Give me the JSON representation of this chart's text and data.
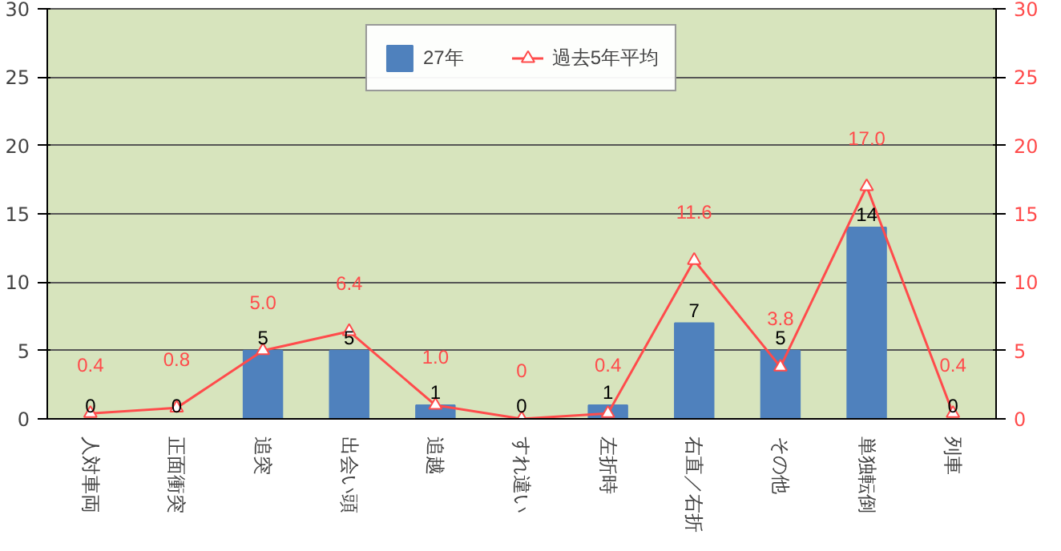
{
  "chart_data": {
    "type": "bar",
    "categories": [
      "人対車両",
      "正面衝突",
      "追突",
      "出会い頭",
      "追越",
      "すれ違い",
      "左折時",
      "右直／右折",
      "その他",
      "単独転倒",
      "列車"
    ],
    "series": [
      {
        "name": "27年",
        "color": "#4f81bd",
        "values": [
          0,
          0,
          5,
          5,
          1,
          0,
          1,
          7,
          5,
          14,
          0
        ],
        "data_labels": true
      },
      {
        "name": "過去5年平均",
        "type": "line",
        "axis": "y2",
        "color": "#ff4b4b",
        "marker": "triangle",
        "values": [
          0.4,
          0.8,
          5.0,
          6.4,
          1.0,
          0,
          0.4,
          11.6,
          3.8,
          17.0,
          0.4
        ],
        "value_labels": [
          "0.4",
          "0.8",
          "5.0",
          "6.4",
          "1.0",
          "0",
          "0.4",
          "11.6",
          "3.8",
          "17.0",
          "0.4"
        ]
      }
    ],
    "ylim": [
      0,
      30
    ],
    "yticks": [
      0,
      5,
      10,
      15,
      20,
      25,
      30
    ],
    "y2lim": [
      0,
      30
    ],
    "y2ticks": [
      0,
      5,
      10,
      15,
      20,
      25,
      30
    ],
    "grid": "y",
    "legend": "top"
  }
}
